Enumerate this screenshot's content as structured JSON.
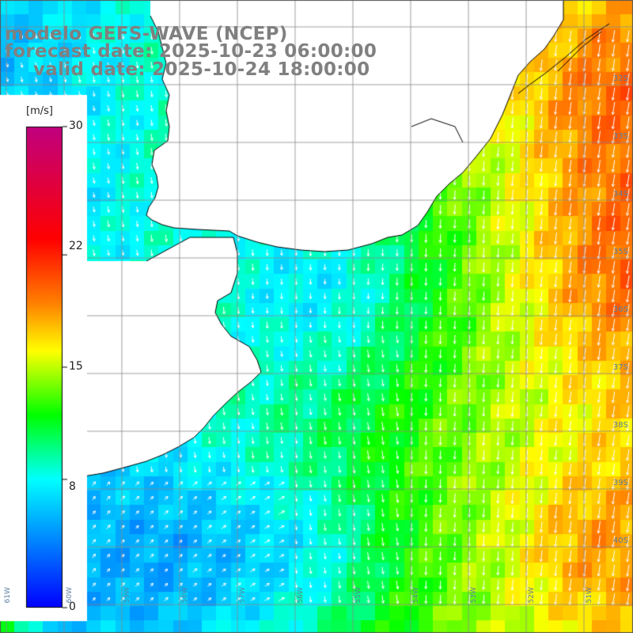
{
  "titles": {
    "model": "modelo GEFS-WAVE (NCEP)",
    "forecast": "forecast date: 2025-10-23 06:00:00",
    "valid": "valid date: 2025-10-24 18:00:00"
  },
  "colorbar": {
    "unit": "[m/s]",
    "ticks": [
      "30",
      "22",
      "15",
      "8",
      "0"
    ],
    "tick_values": [
      30,
      22,
      15,
      8,
      0
    ],
    "range": [
      0,
      30
    ],
    "stops": [
      "#0000ff",
      "#00ffff",
      "#00ff00",
      "#ffff00",
      "#ff8000",
      "#ff0000",
      "#c00080"
    ]
  },
  "map": {
    "variable": "wind speed",
    "land_color": "#ffffff",
    "coast_color": "#000000",
    "grid_color": "#888888",
    "lat_labels": [
      "32S",
      "33S",
      "34S",
      "35S",
      "36S",
      "37S",
      "38S",
      "39S",
      "40S"
    ],
    "lon_labels": [
      "61W",
      "60W",
      "59W",
      "58W",
      "57W",
      "56W",
      "55W",
      "54W",
      "53W",
      "52W",
      "51W"
    ],
    "arrow_color": "#ffffff"
  }
}
